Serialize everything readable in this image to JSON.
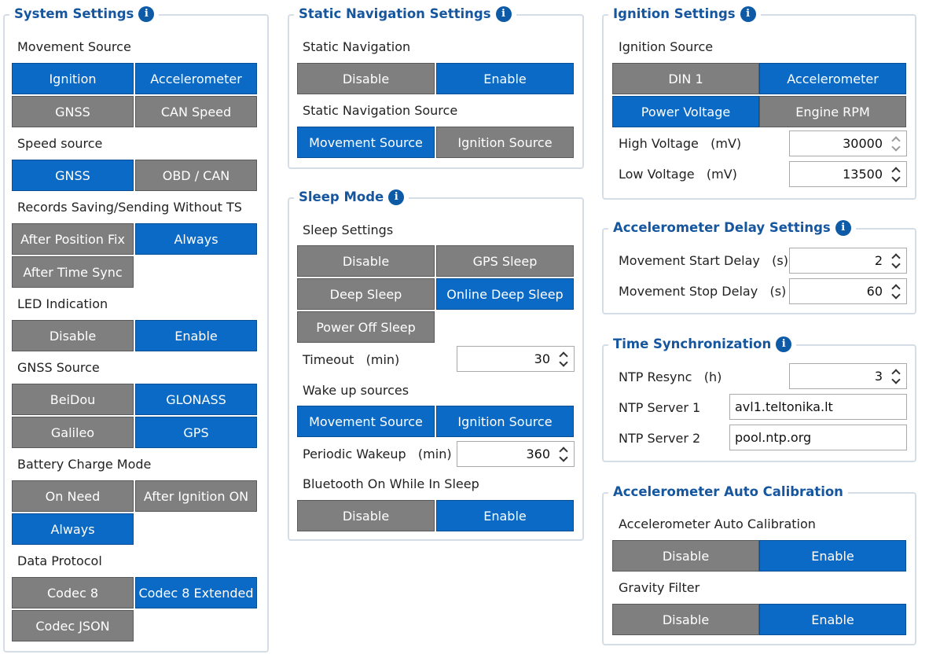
{
  "system": {
    "title": "System Settings",
    "movement_source": {
      "label": "Movement Source",
      "options": [
        "Ignition",
        "Accelerometer",
        "GNSS",
        "CAN Speed"
      ]
    },
    "speed_source": {
      "label": "Speed source",
      "options": [
        "GNSS",
        "OBD / CAN"
      ]
    },
    "records": {
      "label": "Records Saving/Sending Without TS",
      "options": [
        "After Position Fix",
        "Always",
        "After Time Sync"
      ]
    },
    "led": {
      "label": "LED Indication",
      "options": [
        "Disable",
        "Enable"
      ]
    },
    "gnss_source": {
      "label": "GNSS Source",
      "options": [
        "BeiDou",
        "GLONASS",
        "Galileo",
        "GPS"
      ]
    },
    "battery": {
      "label": "Battery Charge Mode",
      "options": [
        "On Need",
        "After Ignition ON",
        "Always"
      ]
    },
    "protocol": {
      "label": "Data Protocol",
      "options": [
        "Codec 8",
        "Codec 8 Extended",
        "Codec JSON"
      ]
    }
  },
  "static_nav": {
    "title": "Static Navigation Settings",
    "nav": {
      "label": "Static Navigation",
      "options": [
        "Disable",
        "Enable"
      ]
    },
    "source": {
      "label": "Static Navigation Source",
      "options": [
        "Movement Source",
        "Ignition Source"
      ]
    }
  },
  "sleep": {
    "title": "Sleep Mode",
    "settings": {
      "label": "Sleep Settings",
      "options": [
        "Disable",
        "GPS Sleep",
        "Deep Sleep",
        "Online Deep Sleep",
        "Power Off Sleep"
      ]
    },
    "timeout": {
      "label": "Timeout",
      "unit": "(min)",
      "value": "30"
    },
    "wakeup": {
      "label": "Wake up sources",
      "options": [
        "Movement Source",
        "Ignition Source"
      ]
    },
    "periodic": {
      "label": "Periodic Wakeup",
      "unit": "(min)",
      "value": "360"
    },
    "bluetooth": {
      "label": "Bluetooth On While In Sleep",
      "options": [
        "Disable",
        "Enable"
      ]
    }
  },
  "ignition": {
    "title": "Ignition Settings",
    "source": {
      "label": "Ignition Source",
      "options": [
        "DIN 1",
        "Accelerometer",
        "Power Voltage",
        "Engine RPM"
      ]
    },
    "high": {
      "label": "High Voltage",
      "unit": "(mV)",
      "value": "30000"
    },
    "low": {
      "label": "Low Voltage",
      "unit": "(mV)",
      "value": "13500"
    }
  },
  "accel_delay": {
    "title": "Accelerometer Delay Settings",
    "start": {
      "label": "Movement Start Delay",
      "unit": "(s)",
      "value": "2"
    },
    "stop": {
      "label": "Movement Stop Delay",
      "unit": "(s)",
      "value": "60"
    }
  },
  "time_sync": {
    "title": "Time Synchronization",
    "resync": {
      "label": "NTP Resync",
      "unit": "(h)",
      "value": "3"
    },
    "server1": {
      "label": "NTP Server 1",
      "value": "avl1.teltonika.lt"
    },
    "server2": {
      "label": "NTP Server 2",
      "value": "pool.ntp.org"
    }
  },
  "auto_cal": {
    "title": "Accelerometer Auto Calibration",
    "cal": {
      "label": "Accelerometer Auto Calibration",
      "options": [
        "Disable",
        "Enable"
      ]
    },
    "gravity": {
      "label": "Gravity Filter",
      "options": [
        "Disable",
        "Enable"
      ]
    }
  },
  "info_icon_glyph": "i",
  "colors": {
    "selected": "#0a6ac5",
    "unselected": "#7f7f7f",
    "heading": "#15569e",
    "border": "#d5dde6"
  }
}
